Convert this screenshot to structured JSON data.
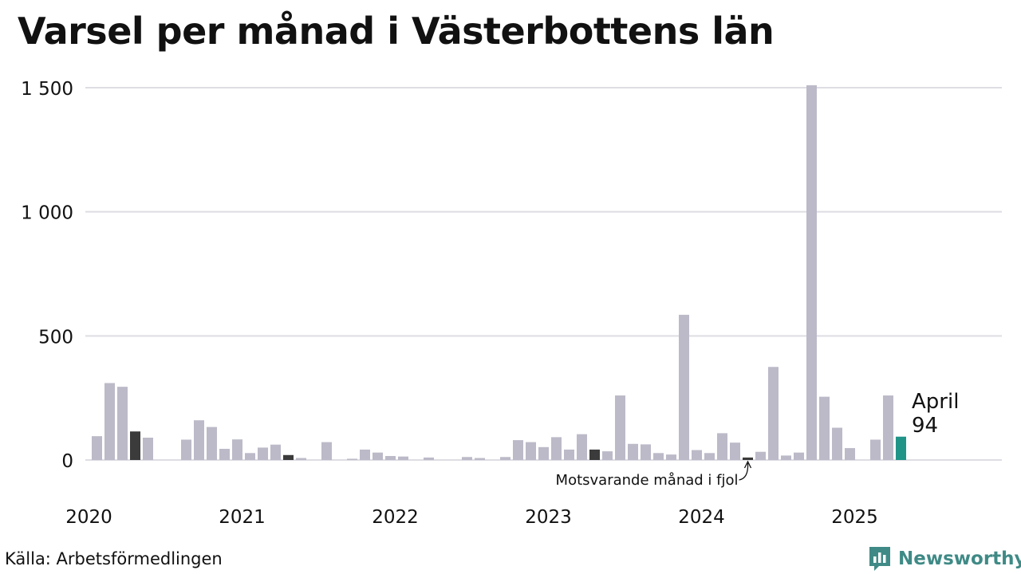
{
  "chart_data": {
    "type": "bar",
    "title": "Varsel per månad i Västerbottens län",
    "xlabel": "",
    "ylabel": "",
    "ylim": [
      0,
      1500
    ],
    "y_ticks": [
      0,
      500,
      1000,
      1500
    ],
    "y_tick_labels": [
      "0",
      "500",
      "1 000",
      "1 500"
    ],
    "x_tick_labels": [
      "2020",
      "2021",
      "2022",
      "2023",
      "2024",
      "2025"
    ],
    "grid": "horizontal",
    "colors": {
      "default": "#bcbac8",
      "highlight": "#3b3b3b",
      "current": "#1f9487"
    },
    "months": [
      "2020-01",
      "2020-02",
      "2020-03",
      "2020-04",
      "2020-05",
      "2020-06",
      "2020-07",
      "2020-08",
      "2020-09",
      "2020-10",
      "2020-11",
      "2020-12",
      "2021-01",
      "2021-02",
      "2021-03",
      "2021-04",
      "2021-05",
      "2021-06",
      "2021-07",
      "2021-08",
      "2021-09",
      "2021-10",
      "2021-11",
      "2021-12",
      "2022-01",
      "2022-02",
      "2022-03",
      "2022-04",
      "2022-05",
      "2022-06",
      "2022-07",
      "2022-08",
      "2022-09",
      "2022-10",
      "2022-11",
      "2022-12",
      "2023-01",
      "2023-02",
      "2023-03",
      "2023-04",
      "2023-05",
      "2023-06",
      "2023-07",
      "2023-08",
      "2023-09",
      "2023-10",
      "2023-11",
      "2023-12",
      "2024-01",
      "2024-02",
      "2024-03",
      "2024-04",
      "2024-05",
      "2024-06",
      "2024-07",
      "2024-08",
      "2024-09",
      "2024-10",
      "2024-11",
      "2024-12",
      "2025-01",
      "2025-02",
      "2025-03",
      "2025-04"
    ],
    "values": [
      96,
      310,
      295,
      115,
      90,
      0,
      0,
      82,
      160,
      133,
      45,
      83,
      28,
      50,
      62,
      20,
      8,
      0,
      72,
      0,
      5,
      42,
      30,
      16,
      14,
      0,
      10,
      0,
      0,
      12,
      8,
      0,
      12,
      80,
      72,
      52,
      92,
      42,
      104,
      42,
      35,
      260,
      65,
      63,
      28,
      22,
      585,
      40,
      28,
      108,
      70,
      10,
      33,
      375,
      18,
      30,
      1510,
      255,
      130,
      48,
      0,
      82,
      260,
      94
    ],
    "highlight_months": [
      "2020-04",
      "2021-04",
      "2023-04",
      "2024-04"
    ],
    "current_month": "2025-04",
    "annotations": {
      "current_month_label": "April",
      "current_value_label": "94",
      "previous_year_note": "Motsvarande månad i fjol"
    }
  },
  "footer": {
    "source": "Källa: Arbetsförmedlingen",
    "brand": "Newsworthy"
  }
}
